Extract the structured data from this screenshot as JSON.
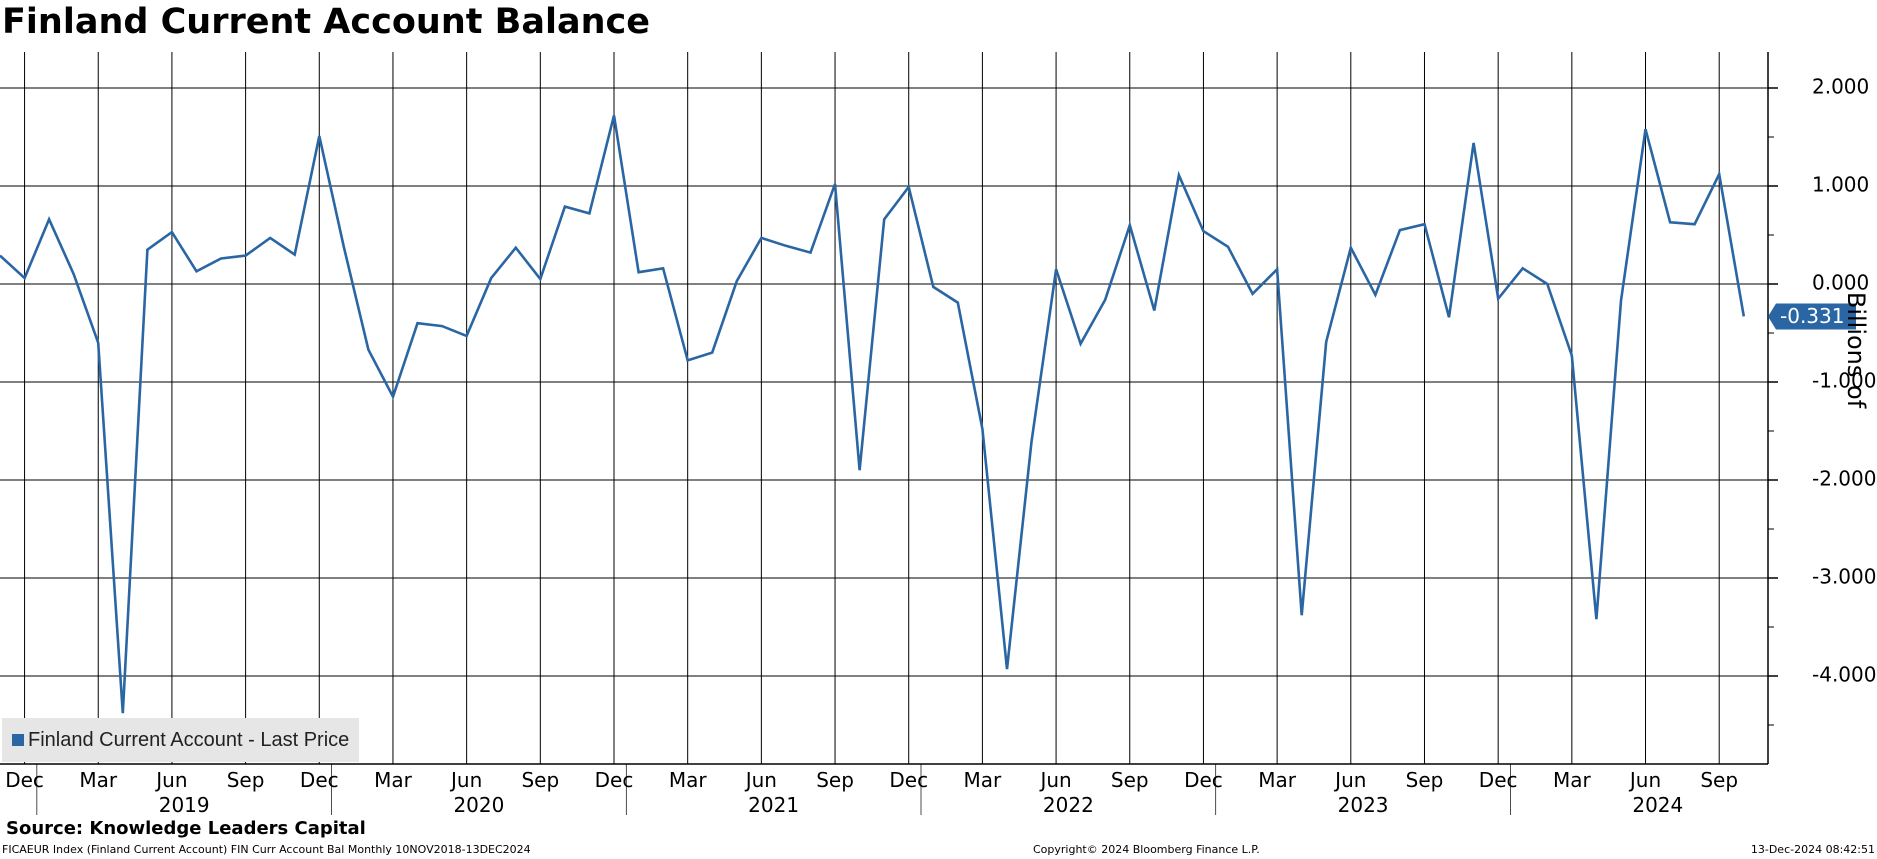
{
  "chart_data": {
    "type": "line",
    "title": "Finland Current Account Balance",
    "ylabel": "Billions of",
    "ylim": [
      -4.8,
      2.3
    ],
    "yticks": [
      2.0,
      1.0,
      0.0,
      -1.0,
      -2.0,
      -3.0,
      -4.0
    ],
    "ytick_labels": [
      "2.000",
      "1.000",
      "0.000",
      "-1.000",
      "-2.000",
      "-3.000",
      "-4.000"
    ],
    "grid": true,
    "legend_position": "bottom-left",
    "month_tick_labels": [
      "Dec",
      "Mar",
      "Jun",
      "Sep",
      "Dec",
      "Mar",
      "Jun",
      "Sep",
      "Dec",
      "Mar",
      "Jun",
      "Sep",
      "Dec",
      "Mar",
      "Jun",
      "Sep",
      "Dec",
      "Mar",
      "Jun",
      "Sep",
      "Dec",
      "Mar",
      "Jun",
      "Sep"
    ],
    "year_labels": [
      "2019",
      "2020",
      "2021",
      "2022",
      "2023",
      "2024"
    ],
    "last_value_label": "-0.331",
    "series": [
      {
        "name": "Finland Current Account - Last Price",
        "color": "#2a66a3",
        "x": [
          "2018-11",
          "2018-12",
          "2019-01",
          "2019-02",
          "2019-03",
          "2019-04",
          "2019-05",
          "2019-06",
          "2019-07",
          "2019-08",
          "2019-09",
          "2019-10",
          "2019-11",
          "2019-12",
          "2020-01",
          "2020-02",
          "2020-03",
          "2020-04",
          "2020-05",
          "2020-06",
          "2020-07",
          "2020-08",
          "2020-09",
          "2020-10",
          "2020-11",
          "2020-12",
          "2021-01",
          "2021-02",
          "2021-03",
          "2021-04",
          "2021-05",
          "2021-06",
          "2021-07",
          "2021-08",
          "2021-09",
          "2021-10",
          "2021-11",
          "2021-12",
          "2022-01",
          "2022-02",
          "2022-03",
          "2022-04",
          "2022-05",
          "2022-06",
          "2022-07",
          "2022-08",
          "2022-09",
          "2022-10",
          "2022-11",
          "2022-12",
          "2023-01",
          "2023-02",
          "2023-03",
          "2023-04",
          "2023-05",
          "2023-06",
          "2023-07",
          "2023-08",
          "2023-09",
          "2023-10",
          "2023-11",
          "2023-12",
          "2024-01",
          "2024-02",
          "2024-03",
          "2024-04",
          "2024-05",
          "2024-06",
          "2024-07",
          "2024-08",
          "2024-09",
          "2024-10"
        ],
        "values": [
          0.29,
          0.06,
          0.66,
          0.1,
          -0.6,
          -4.38,
          0.35,
          0.53,
          0.13,
          0.26,
          0.29,
          0.47,
          0.3,
          1.51,
          0.38,
          -0.67,
          -1.15,
          -0.4,
          -0.43,
          -0.53,
          0.06,
          0.37,
          0.05,
          0.79,
          0.72,
          1.72,
          0.12,
          0.16,
          -0.78,
          -0.7,
          0.03,
          0.47,
          0.39,
          0.32,
          1.02,
          -1.9,
          0.66,
          0.99,
          -0.03,
          -0.19,
          -1.48,
          -3.93,
          -1.61,
          0.15,
          -0.61,
          -0.16,
          0.6,
          -0.27,
          1.11,
          0.54,
          0.38,
          -0.1,
          0.15,
          -3.38,
          -0.59,
          0.37,
          -0.11,
          0.55,
          0.61,
          -0.34,
          1.44,
          -0.15,
          0.16,
          0.0,
          -0.73,
          -3.42,
          -0.17,
          1.58,
          0.63,
          0.61,
          1.12,
          -0.331
        ]
      }
    ]
  },
  "source": "Source: Knowledge Leaders Capital",
  "footer_left": "FICAEUR Index (Finland Current Account) FIN Curr Account Bal  Monthly 10NOV2018-13DEC2024",
  "footer_center": "Copyright© 2024 Bloomberg Finance L.P.",
  "footer_right": "13-Dec-2024 08:42:51",
  "colors": {
    "line": "#2a66a3",
    "grid": "#000000",
    "legend_bg": "#e6e6e6"
  }
}
